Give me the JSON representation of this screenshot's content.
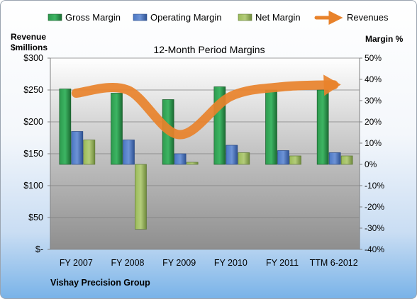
{
  "chart_data": {
    "type": "bar",
    "title": "12-Month Period Margins",
    "left_axis_title": [
      "Revenue",
      "$millions"
    ],
    "right_axis_title": "Margin %",
    "categories": [
      "FY 2007",
      "FY 2008",
      "FY 2009",
      "FY 2010",
      "FY 2011",
      "TTM 6-2012"
    ],
    "left_ticks": [
      "$-",
      "$50",
      "$100",
      "$150",
      "$200",
      "$250",
      "$300"
    ],
    "right_ticks": [
      "-40%",
      "-30%",
      "-20%",
      "-10%",
      "0%",
      "10%",
      "20%",
      "30%",
      "40%",
      "50%"
    ],
    "ylim_left": [
      0,
      300
    ],
    "ylim_right": [
      -40,
      50
    ],
    "series": [
      {
        "name": "Gross Margin",
        "color": "#217a3c",
        "values": [
          35.5,
          33.5,
          30.5,
          36.5,
          35.0,
          35.0
        ]
      },
      {
        "name": "Operating Margin",
        "color": "#3a64b0",
        "values": [
          15.5,
          11.5,
          5.0,
          9.0,
          6.5,
          5.5
        ]
      },
      {
        "name": "Net Margin",
        "color": "#8aa84e",
        "values": [
          11.5,
          -30.5,
          1.0,
          5.5,
          4.0,
          4.0
        ]
      }
    ],
    "line_series": {
      "name": "Revenues",
      "color": "#e8822b",
      "values": [
        245,
        250,
        180,
        240,
        255,
        258
      ]
    },
    "legend_position": "top",
    "footer": "Vishay Precision Group"
  }
}
